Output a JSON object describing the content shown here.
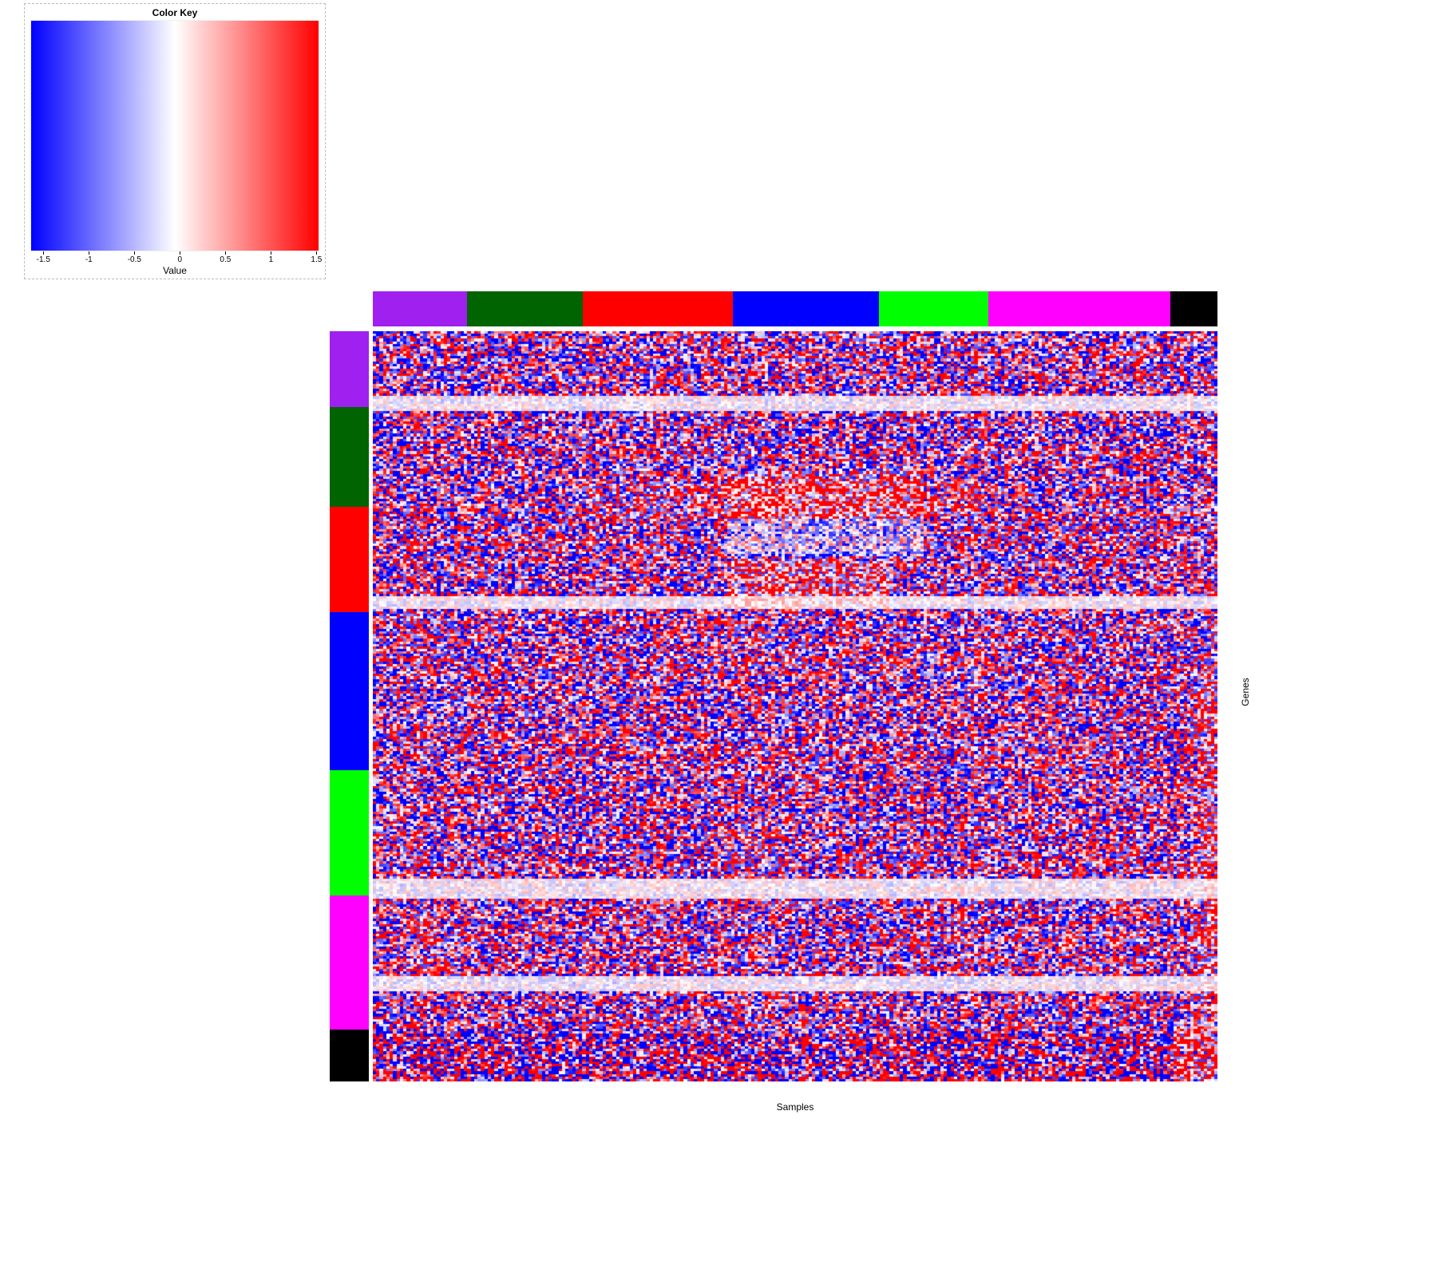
{
  "chart_data": {
    "type": "heatmap",
    "title": "Color Key",
    "xlabel": "Samples",
    "ylabel": "Genes",
    "value_label": "Value",
    "value_range": [
      -1.5,
      1.5
    ],
    "colorkey_ticks": [
      "-1.5",
      "-1",
      "-0.5",
      "0",
      "0.5",
      "1",
      "1.5"
    ],
    "colorkey_tick_values": [
      -1.5,
      -1,
      -0.5,
      0,
      0.5,
      1,
      1.5
    ],
    "colormap": [
      {
        "value": -1.5,
        "color": "#0000FF"
      },
      {
        "value": 0,
        "color": "#FFFFFF"
      },
      {
        "value": 1.5,
        "color": "#FF0000"
      }
    ],
    "column_groups": [
      {
        "color": "#A020F0",
        "fraction": 0.112
      },
      {
        "color": "#006400",
        "fraction": 0.137
      },
      {
        "color": "#FF0000",
        "fraction": 0.177
      },
      {
        "color": "#0000FF",
        "fraction": 0.173
      },
      {
        "color": "#00FF00",
        "fraction": 0.13
      },
      {
        "color": "#FF00FF",
        "fraction": 0.215
      },
      {
        "color": "#000000",
        "fraction": 0.056
      }
    ],
    "row_groups": [
      {
        "color": "#A020F0",
        "fraction": 0.101
      },
      {
        "color": "#006400",
        "fraction": 0.133
      },
      {
        "color": "#FF0000",
        "fraction": 0.14
      },
      {
        "color": "#0000FF",
        "fraction": 0.211
      },
      {
        "color": "#00FF00",
        "fraction": 0.167
      },
      {
        "color": "#FF00FF",
        "fraction": 0.179
      },
      {
        "color": "#000000",
        "fraction": 0.069
      }
    ],
    "grid": {
      "rows": 300,
      "cols": 250
    },
    "texture": {
      "seed": 1337,
      "amplitude": 1.35,
      "tail_power": 0.6,
      "white_speckle": 0.1,
      "row_bias_sd": 0.22,
      "col_bias_sd": 0.16
    },
    "light_row_bands": [
      {
        "start": 0.086,
        "end": 0.106
      },
      {
        "start": 0.352,
        "end": 0.368
      },
      {
        "start": 0.728,
        "end": 0.756
      },
      {
        "start": 0.86,
        "end": 0.878
      }
    ],
    "regions": [
      {
        "rows": [
          0.195,
          0.245
        ],
        "cols": [
          0.25,
          0.72
        ],
        "bias": 0.3
      },
      {
        "rows": [
          0.185,
          0.25
        ],
        "cols": [
          0.42,
          0.65
        ],
        "bias": 0.45
      },
      {
        "rows": [
          0.25,
          0.3
        ],
        "cols": [
          0.42,
          0.65
        ],
        "bias": -0.25,
        "amp": 0.55
      },
      {
        "rows": [
          0.305,
          0.37
        ],
        "cols": [
          0.42,
          0.61
        ],
        "bias": 0.55
      },
      {
        "rows": [
          0.45,
          0.93
        ],
        "cols": [
          0.965,
          1.0
        ],
        "bias": 0.35
      },
      {
        "rows": [
          0.935,
          1.0
        ],
        "cols": [
          0.0,
          1.0
        ],
        "amp": 1.35
      },
      {
        "rows": [
          0.925,
          1.0
        ],
        "cols": [
          0.945,
          1.0
        ],
        "bias": 0.9
      }
    ]
  }
}
